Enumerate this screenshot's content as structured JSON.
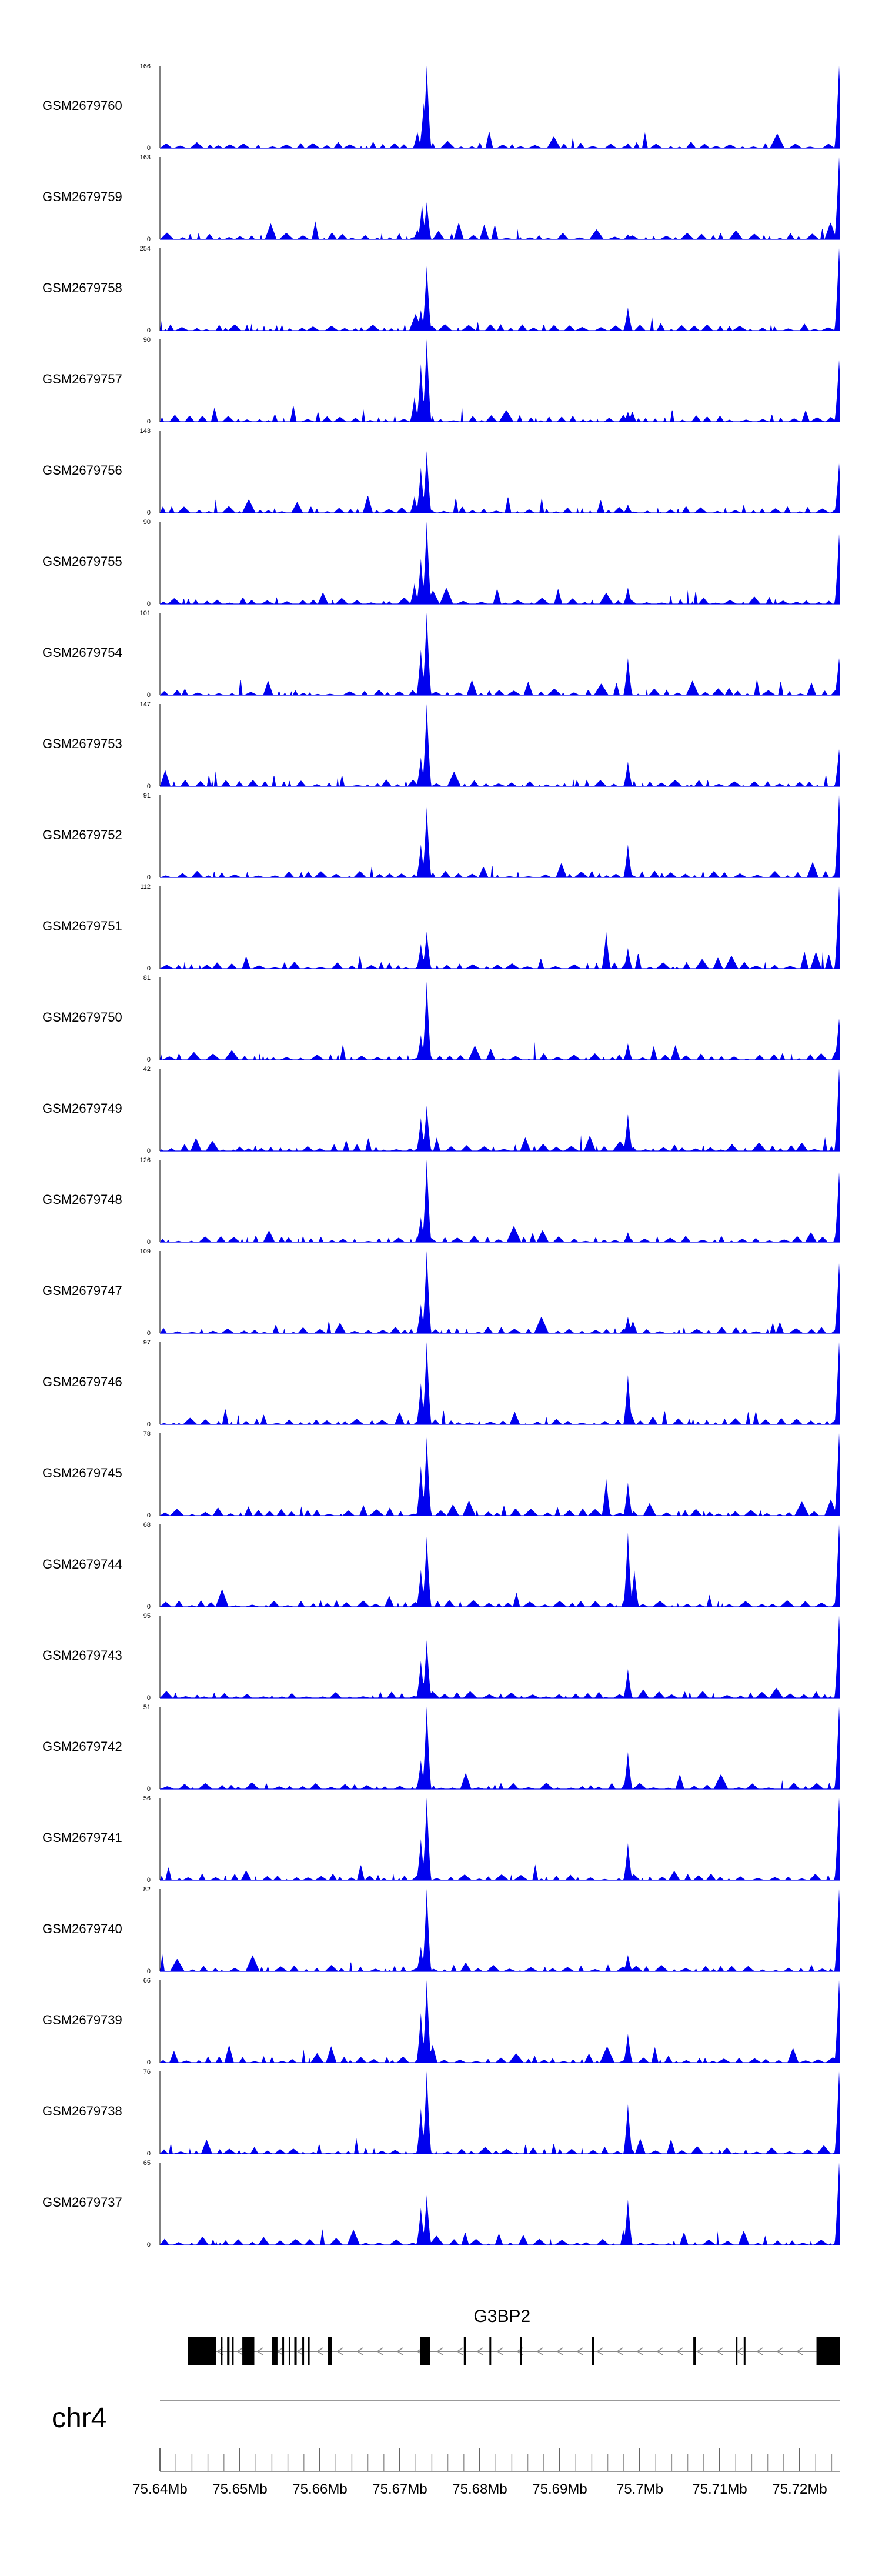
{
  "chart_data": {
    "type": "area",
    "description_free": true,
    "x_unit": "Mb",
    "xlim": [
      75.64,
      75.725
    ],
    "x_axis": {
      "chromosome": "chr4",
      "major_ticks": [
        {
          "value": 75.64,
          "label": "75.64Mb"
        },
        {
          "value": 75.65,
          "label": "75.65Mb"
        },
        {
          "value": 75.66,
          "label": "75.66Mb"
        },
        {
          "value": 75.67,
          "label": "75.67Mb"
        },
        {
          "value": 75.68,
          "label": "75.68Mb"
        },
        {
          "value": 75.69,
          "label": "75.69Mb"
        },
        {
          "value": 75.7,
          "label": "75.7Mb"
        },
        {
          "value": 75.71,
          "label": "75.71Mb"
        },
        {
          "value": 75.72,
          "label": "75.72Mb"
        }
      ],
      "minor_step": 0.002
    },
    "fill_color": "#0000ee",
    "tracks": [
      {
        "name": "GSM2679760",
        "ymax": 166,
        "ymin": 0,
        "peaks": [
          [
            75.6734,
            1.0
          ],
          [
            75.673,
            0.55
          ],
          [
            75.6722,
            0.2
          ],
          [
            75.6985,
            0.06
          ],
          [
            75.7249,
            1.0
          ]
        ]
      },
      {
        "name": "GSM2679759",
        "ymax": 163,
        "ymin": 0,
        "peaks": [
          [
            75.6734,
            0.45
          ],
          [
            75.6728,
            0.42
          ],
          [
            75.6722,
            0.12
          ],
          [
            75.6985,
            0.06
          ],
          [
            75.7249,
            1.0
          ]
        ]
      },
      {
        "name": "GSM2679758",
        "ymax": 254,
        "ymin": 0,
        "peaks": [
          [
            75.6734,
            0.78
          ],
          [
            75.6726,
            0.25
          ],
          [
            75.6985,
            0.28
          ],
          [
            75.7249,
            1.0
          ]
        ]
      },
      {
        "name": "GSM2679757",
        "ymax": 90,
        "ymin": 0,
        "peaks": [
          [
            75.6734,
            1.0
          ],
          [
            75.6726,
            0.7
          ],
          [
            75.6718,
            0.3
          ],
          [
            75.6985,
            0.12
          ],
          [
            75.7249,
            0.75
          ]
        ]
      },
      {
        "name": "GSM2679756",
        "ymax": 143,
        "ymin": 0,
        "peaks": [
          [
            75.6734,
            0.75
          ],
          [
            75.6726,
            0.55
          ],
          [
            75.6718,
            0.2
          ],
          [
            75.6985,
            0.1
          ],
          [
            75.7249,
            0.6
          ]
        ]
      },
      {
        "name": "GSM2679755",
        "ymax": 90,
        "ymin": 0,
        "peaks": [
          [
            75.6734,
            1.0
          ],
          [
            75.6726,
            0.55
          ],
          [
            75.6718,
            0.25
          ],
          [
            75.6985,
            0.2
          ],
          [
            75.7249,
            0.85
          ]
        ]
      },
      {
        "name": "GSM2679754",
        "ymax": 101,
        "ymin": 0,
        "peaks": [
          [
            75.6734,
            1.0
          ],
          [
            75.6726,
            0.55
          ],
          [
            75.6985,
            0.45
          ],
          [
            75.7249,
            0.45
          ]
        ]
      },
      {
        "name": "GSM2679753",
        "ymax": 147,
        "ymin": 0,
        "peaks": [
          [
            75.6734,
            1.0
          ],
          [
            75.6726,
            0.35
          ],
          [
            75.6985,
            0.3
          ],
          [
            75.7249,
            0.45
          ]
        ]
      },
      {
        "name": "GSM2679752",
        "ymax": 91,
        "ymin": 0,
        "peaks": [
          [
            75.6734,
            0.85
          ],
          [
            75.6726,
            0.4
          ],
          [
            75.6985,
            0.4
          ],
          [
            75.7249,
            1.0
          ]
        ]
      },
      {
        "name": "GSM2679751",
        "ymax": 112,
        "ymin": 0,
        "peaks": [
          [
            75.6734,
            0.45
          ],
          [
            75.6726,
            0.3
          ],
          [
            75.6958,
            0.45
          ],
          [
            75.6985,
            0.25
          ],
          [
            75.7249,
            1.0
          ]
        ]
      },
      {
        "name": "GSM2679750",
        "ymax": 81,
        "ymin": 0,
        "peaks": [
          [
            75.6734,
            0.95
          ],
          [
            75.6726,
            0.3
          ],
          [
            75.6985,
            0.2
          ],
          [
            75.7249,
            0.5
          ]
        ]
      },
      {
        "name": "GSM2679749",
        "ymax": 42,
        "ymin": 0,
        "peaks": [
          [
            75.6734,
            0.55
          ],
          [
            75.6726,
            0.4
          ],
          [
            75.6985,
            0.45
          ],
          [
            75.7249,
            1.0
          ]
        ]
      },
      {
        "name": "GSM2679748",
        "ymax": 126,
        "ymin": 0,
        "peaks": [
          [
            75.6734,
            1.0
          ],
          [
            75.6726,
            0.3
          ],
          [
            75.6985,
            0.12
          ],
          [
            75.7249,
            0.85
          ]
        ]
      },
      {
        "name": "GSM2679747",
        "ymax": 109,
        "ymin": 0,
        "peaks": [
          [
            75.6734,
            1.0
          ],
          [
            75.6726,
            0.35
          ],
          [
            75.6985,
            0.2
          ],
          [
            75.7249,
            0.85
          ]
        ]
      },
      {
        "name": "GSM2679746",
        "ymax": 97,
        "ymin": 0,
        "peaks": [
          [
            75.6734,
            1.0
          ],
          [
            75.6726,
            0.5
          ],
          [
            75.6985,
            0.6
          ],
          [
            75.7249,
            1.0
          ]
        ]
      },
      {
        "name": "GSM2679745",
        "ymax": 78,
        "ymin": 0,
        "peaks": [
          [
            75.6734,
            0.95
          ],
          [
            75.6726,
            0.6
          ],
          [
            75.6958,
            0.45
          ],
          [
            75.6985,
            0.4
          ],
          [
            75.7249,
            1.0
          ]
        ]
      },
      {
        "name": "GSM2679744",
        "ymax": 68,
        "ymin": 0,
        "peaks": [
          [
            75.6734,
            0.85
          ],
          [
            75.6726,
            0.45
          ],
          [
            75.6985,
            0.9
          ],
          [
            75.6993,
            0.45
          ],
          [
            75.7249,
            1.0
          ]
        ]
      },
      {
        "name": "GSM2679743",
        "ymax": 95,
        "ymin": 0,
        "peaks": [
          [
            75.6734,
            0.7
          ],
          [
            75.6726,
            0.45
          ],
          [
            75.6985,
            0.35
          ],
          [
            75.7249,
            1.0
          ]
        ]
      },
      {
        "name": "GSM2679742",
        "ymax": 51,
        "ymin": 0,
        "peaks": [
          [
            75.6734,
            1.0
          ],
          [
            75.6726,
            0.35
          ],
          [
            75.6985,
            0.45
          ],
          [
            75.7249,
            1.0
          ]
        ]
      },
      {
        "name": "GSM2679741",
        "ymax": 56,
        "ymin": 0,
        "peaks": [
          [
            75.6734,
            1.0
          ],
          [
            75.6726,
            0.5
          ],
          [
            75.6985,
            0.45
          ],
          [
            75.7249,
            1.0
          ]
        ]
      },
      {
        "name": "GSM2679740",
        "ymax": 82,
        "ymin": 0,
        "peaks": [
          [
            75.6734,
            1.0
          ],
          [
            75.6726,
            0.3
          ],
          [
            75.6985,
            0.2
          ],
          [
            75.7249,
            1.0
          ]
        ]
      },
      {
        "name": "GSM2679739",
        "ymax": 66,
        "ymin": 0,
        "peaks": [
          [
            75.6734,
            1.0
          ],
          [
            75.6726,
            0.6
          ],
          [
            75.6985,
            0.35
          ],
          [
            75.7249,
            1.0
          ]
        ]
      },
      {
        "name": "GSM2679738",
        "ymax": 76,
        "ymin": 0,
        "peaks": [
          [
            75.6734,
            1.0
          ],
          [
            75.6726,
            0.55
          ],
          [
            75.6985,
            0.6
          ],
          [
            75.7249,
            1.0
          ]
        ]
      },
      {
        "name": "GSM2679737",
        "ymax": 65,
        "ymin": 0,
        "peaks": [
          [
            75.6734,
            0.6
          ],
          [
            75.6726,
            0.45
          ],
          [
            75.6985,
            0.55
          ],
          [
            75.7249,
            1.0
          ]
        ]
      }
    ],
    "gene": {
      "name": "G3BP2",
      "start": 75.6435,
      "end": 75.725,
      "exons": [
        [
          75.6435,
          75.647
        ],
        [
          75.6476,
          75.6478
        ],
        [
          75.6484,
          75.6487
        ],
        [
          75.649,
          75.6492
        ],
        [
          75.6503,
          75.6518
        ],
        [
          75.654,
          75.6547
        ],
        [
          75.6553,
          75.6555
        ],
        [
          75.6561,
          75.6563
        ],
        [
          75.6568,
          75.6571
        ],
        [
          75.6578,
          75.658
        ],
        [
          75.6585,
          75.6587
        ],
        [
          75.661,
          75.6615
        ],
        [
          75.6725,
          75.6738
        ],
        [
          75.678,
          75.6783
        ],
        [
          75.6812,
          75.6814
        ],
        [
          75.685,
          75.6852
        ],
        [
          75.694,
          75.6943
        ],
        [
          75.7067,
          75.707
        ],
        [
          75.712,
          75.7122
        ],
        [
          75.713,
          75.7131
        ],
        [
          75.7221,
          75.725
        ]
      ],
      "strand": "-"
    }
  }
}
